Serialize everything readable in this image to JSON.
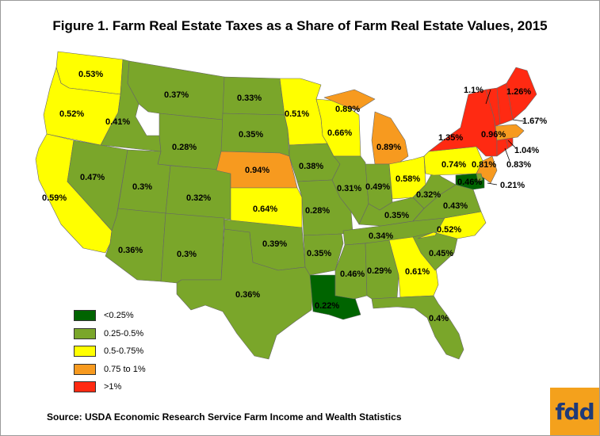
{
  "title": "Figure 1. Farm Real Estate Taxes as a Share of Farm Real Estate Values, 2015",
  "source": "Source: USDA Economic Research Service Farm Income and Wealth Statistics",
  "logo_text": "fdd",
  "colors": {
    "lt025": "#006400",
    "c025_05": "#7aa62a",
    "c05_075": "#ffff00",
    "c075_1": "#f79a1f",
    "gt1": "#ff2a12"
  },
  "legend": [
    {
      "label": "<0.25%",
      "color": "#006400"
    },
    {
      "label": "0.25-0.5%",
      "color": "#7aa62a"
    },
    {
      "label": "0.5-0.75%",
      "color": "#ffff00"
    },
    {
      "label": "0.75 to 1%",
      "color": "#f79a1f"
    },
    {
      "label": ">1%",
      "color": "#ff2a12"
    }
  ],
  "state_labels": {
    "WA": "0.53%",
    "OR": "0.52%",
    "CA": "0.59%",
    "ID": "0.41%",
    "NV": "0.47%",
    "MT": "0.37%",
    "WY": "0.28%",
    "UT": "0.3%",
    "AZ": "0.36%",
    "CO": "0.32%",
    "NM": "0.3%",
    "ND": "0.33%",
    "SD": "0.35%",
    "NE": "0.94%",
    "KS": "0.64%",
    "OK": "0.39%",
    "TX": "0.36%",
    "MN": "0.51%",
    "IA": "0.38%",
    "MO": "0.28%",
    "AR": "0.35%",
    "LA": "0.22%",
    "WI": "0.66%",
    "IL": "0.31%",
    "MI": "0.89%",
    "IN": "0.49%",
    "OH": "0.58%",
    "KY": "0.35%",
    "TN": "0.34%",
    "MS": "0.46%",
    "AL": "0.29%",
    "GA": "0.61%",
    "FL": "0.4%",
    "SC": "0.45%",
    "NC": "0.52%",
    "VA": "0.43%",
    "WV": "0.32%",
    "PA": "0.74%",
    "NY": "1.35%",
    "VT": "1.1%",
    "NH": "1.67%",
    "ME": "1.26%",
    "MA": "0.96%",
    "RI": "1.04%",
    "CT": "0.83%",
    "NJ": "0.81%",
    "DE": "0.46%",
    "MD": "0.21%",
    "lake_mi": "0.89%"
  }
}
